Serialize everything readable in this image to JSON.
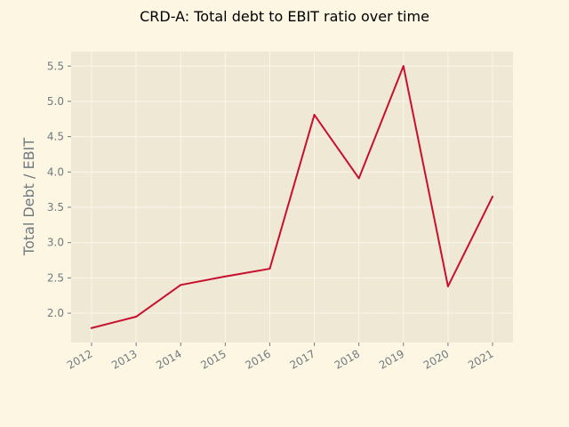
{
  "chart_data": {
    "type": "line",
    "title": "CRD-A: Total debt to EBIT ratio over time",
    "xlabel": "",
    "ylabel": "Total Debt / EBIT",
    "x": [
      "2012",
      "2013",
      "2014",
      "2015",
      "2016",
      "2017",
      "2018",
      "2019",
      "2020",
      "2021"
    ],
    "series": [
      {
        "values": [
          1.79,
          1.95,
          2.4,
          2.52,
          2.63,
          4.81,
          3.91,
          5.5,
          2.38,
          3.65
        ]
      }
    ],
    "yticks": [
      "2.0",
      "2.5",
      "3.0",
      "3.5",
      "4.0",
      "4.5",
      "5.0",
      "5.5"
    ],
    "ylim": [
      1.585,
      5.705
    ],
    "grid": true,
    "legend": "none",
    "colors": {
      "page_background": "#fdf6e3",
      "plot_background": "#eee8d5",
      "line": "#c8102e",
      "grid": "#fbf6ea",
      "text": "#6f7a80"
    }
  }
}
